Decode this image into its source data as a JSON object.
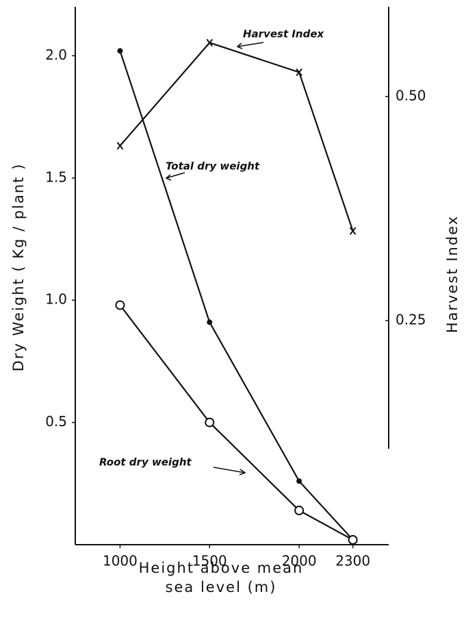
{
  "chart_data": {
    "type": "line",
    "xlabel": [
      "Height above mean",
      "sea level (m)"
    ],
    "ylabel": "Dry Weight ( Kg / plant )",
    "y2label": "Harvest Index",
    "x": [
      1000,
      1500,
      2000,
      2300
    ],
    "xlim": [
      750,
      2500
    ],
    "xticks": [
      1000,
      1500,
      2000,
      2300
    ],
    "ylim": [
      0,
      2.2
    ],
    "yticks": [
      0.5,
      {
        "value": 1,
        "label": "1.0"
      },
      1.5,
      {
        "value": 2,
        "label": "2.0"
      }
    ],
    "y2lim": [
      0,
      0.6
    ],
    "y2ticks": [
      0.25,
      {
        "value": 0.5,
        "label": "0.50"
      }
    ],
    "series": [
      {
        "name": "Total dry weight",
        "color": "#111111",
        "marker": "dot",
        "values": [
          2.02,
          0.91,
          0.26,
          0.02
        ]
      },
      {
        "name": "Root dry weight",
        "color": "#111111",
        "marker": "circle",
        "values": [
          0.98,
          0.5,
          0.14,
          0.02
        ]
      },
      {
        "name": "Harvest Index",
        "color": "#111111",
        "marker": "x",
        "axis": "y2",
        "values": [
          0.445,
          0.56,
          0.527,
          0.35
        ]
      }
    ]
  }
}
